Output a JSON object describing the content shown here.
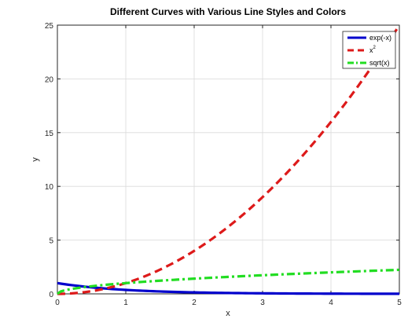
{
  "chart_data": {
    "type": "line",
    "title": "Different Curves with Various Line Styles and Colors",
    "xlabel": "x",
    "ylabel": "y",
    "xlim": [
      0,
      5
    ],
    "ylim": [
      0,
      25
    ],
    "xticks": [
      0,
      1,
      2,
      3,
      4,
      5
    ],
    "yticks": [
      0,
      5,
      10,
      15,
      20,
      25
    ],
    "grid": true,
    "legend_position": "top-right",
    "series": [
      {
        "name": "exp(-x)",
        "function": "exp(-x)",
        "color": "#0000cc",
        "style": "solid",
        "x": [
          0,
          0.5,
          1,
          1.5,
          2,
          2.5,
          3,
          3.5,
          4,
          4.5,
          5
        ],
        "y": [
          1.0,
          0.61,
          0.37,
          0.22,
          0.14,
          0.08,
          0.05,
          0.03,
          0.02,
          0.01,
          0.01
        ]
      },
      {
        "name": "x",
        "name_superscript": "2",
        "function": "x^2",
        "color": "#dd1a1a",
        "style": "dashed",
        "x": [
          0,
          0.5,
          1,
          1.5,
          2,
          2.5,
          3,
          3.5,
          4,
          4.5,
          5
        ],
        "y": [
          0,
          0.25,
          1,
          2.25,
          4,
          6.25,
          9,
          12.25,
          16,
          20.25,
          25
        ]
      },
      {
        "name": "sqrt(x)",
        "function": "sqrt(x)",
        "color": "#22dd22",
        "style": "dashdot",
        "x": [
          0,
          0.5,
          1,
          1.5,
          2,
          2.5,
          3,
          3.5,
          4,
          4.5,
          5
        ],
        "y": [
          0,
          0.71,
          1.0,
          1.22,
          1.41,
          1.58,
          1.73,
          1.87,
          2.0,
          2.12,
          2.24
        ]
      }
    ]
  }
}
